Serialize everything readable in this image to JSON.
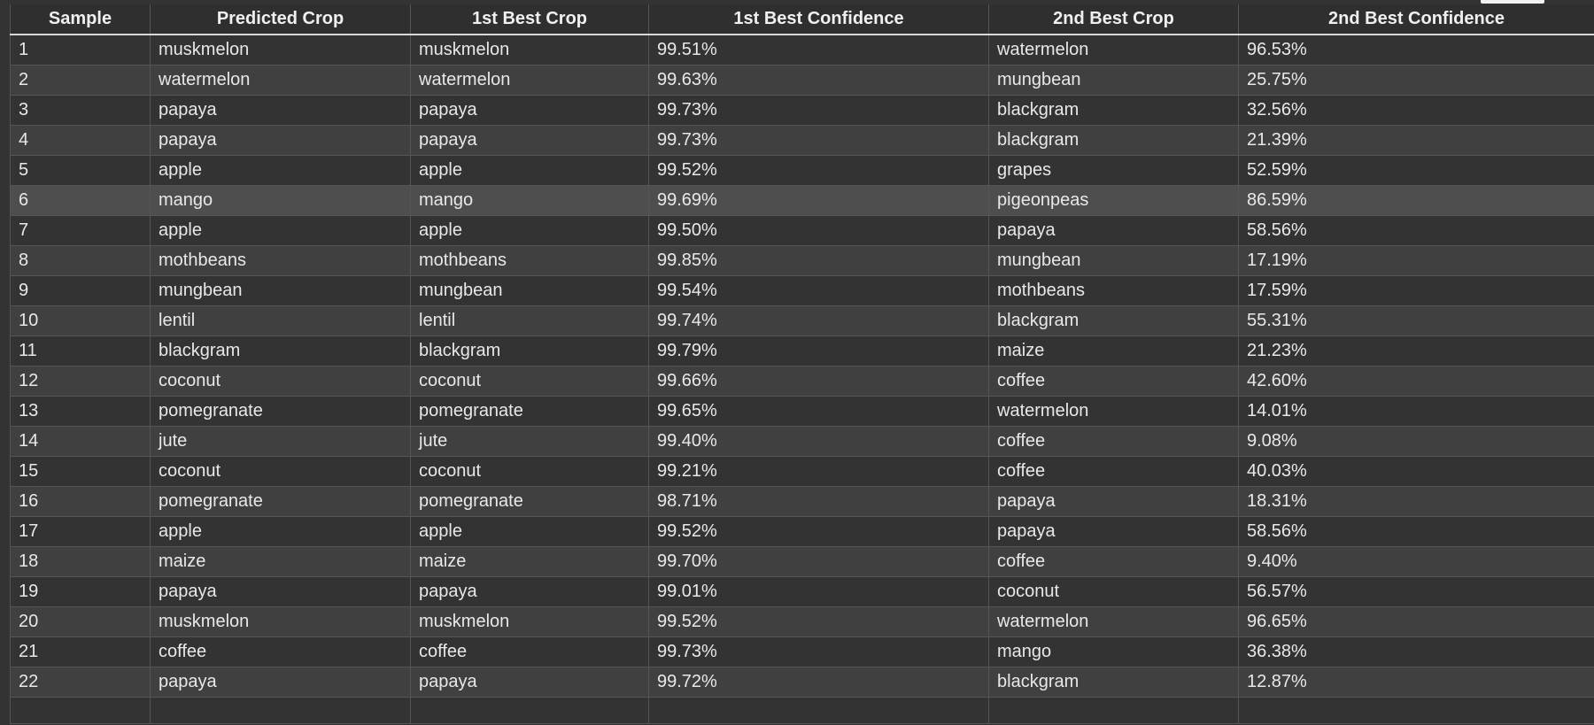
{
  "table": {
    "headers": [
      "Sample",
      "Predicted Crop",
      "1st Best Crop",
      "1st Best Confidence",
      "2nd Best Crop",
      "2nd Best Confidence"
    ],
    "rows": [
      [
        "1",
        "muskmelon",
        "muskmelon",
        "99.51%",
        "watermelon",
        "96.53%"
      ],
      [
        "2",
        "watermelon",
        "watermelon",
        "99.63%",
        "mungbean",
        "25.75%"
      ],
      [
        "3",
        "papaya",
        "papaya",
        "99.73%",
        "blackgram",
        "32.56%"
      ],
      [
        "4",
        "papaya",
        "papaya",
        "99.73%",
        "blackgram",
        "21.39%"
      ],
      [
        "5",
        "apple",
        "apple",
        "99.52%",
        "grapes",
        "52.59%"
      ],
      [
        "6",
        "mango",
        "mango",
        "99.69%",
        "pigeonpeas",
        "86.59%"
      ],
      [
        "7",
        "apple",
        "apple",
        "99.50%",
        "papaya",
        "58.56%"
      ],
      [
        "8",
        "mothbeans",
        "mothbeans",
        "99.85%",
        "mungbean",
        "17.19%"
      ],
      [
        "9",
        "mungbean",
        "mungbean",
        "99.54%",
        "mothbeans",
        "17.59%"
      ],
      [
        "10",
        "lentil",
        "lentil",
        "99.74%",
        "blackgram",
        "55.31%"
      ],
      [
        "11",
        "blackgram",
        "blackgram",
        "99.79%",
        "maize",
        "21.23%"
      ],
      [
        "12",
        "coconut",
        "coconut",
        "99.66%",
        "coffee",
        "42.60%"
      ],
      [
        "13",
        "pomegranate",
        "pomegranate",
        "99.65%",
        "watermelon",
        "14.01%"
      ],
      [
        "14",
        "jute",
        "jute",
        "99.40%",
        "coffee",
        "9.08%"
      ],
      [
        "15",
        "coconut",
        "coconut",
        "99.21%",
        "coffee",
        "40.03%"
      ],
      [
        "16",
        "pomegranate",
        "pomegranate",
        "98.71%",
        "papaya",
        "18.31%"
      ],
      [
        "17",
        "apple",
        "apple",
        "99.52%",
        "papaya",
        "58.56%"
      ],
      [
        "18",
        "maize",
        "maize",
        "99.70%",
        "coffee",
        "9.40%"
      ],
      [
        "19",
        "papaya",
        "papaya",
        "99.01%",
        "coconut",
        "56.57%"
      ],
      [
        "20",
        "muskmelon",
        "muskmelon",
        "99.52%",
        "watermelon",
        "96.65%"
      ],
      [
        "21",
        "coffee",
        "coffee",
        "99.73%",
        "mango",
        "36.38%"
      ],
      [
        "22",
        "papaya",
        "papaya",
        "99.72%",
        "blackgram",
        "12.87%"
      ]
    ],
    "hovered_row": 6
  }
}
